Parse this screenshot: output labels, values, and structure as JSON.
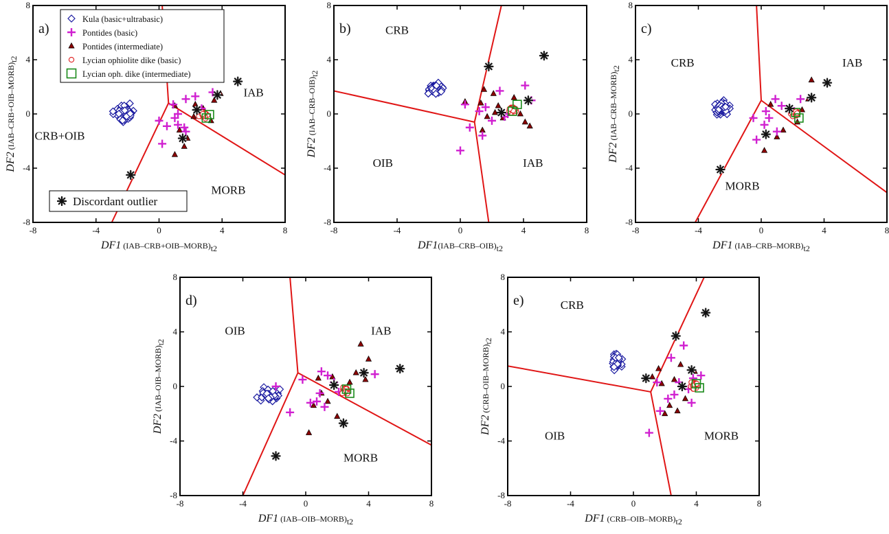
{
  "colors": {
    "kula": "#1a1aa0",
    "pontides_basic": "#d020d0",
    "pontides_intermediate": "#8b0000",
    "lycian_basic": "#e02020",
    "lycian_intermediate": "#1a8a1a",
    "boundary": "#e01515",
    "outlier": "#111111"
  },
  "legend": {
    "entries": [
      {
        "marker": "diamond",
        "label": "Kula (basic+ultrabasic)"
      },
      {
        "marker": "plus",
        "label": "Pontides (basic)"
      },
      {
        "marker": "triangle",
        "label": "Pontides (intermediate)"
      },
      {
        "marker": "circle",
        "label": "Lycian ophiolite dike (basic)"
      },
      {
        "marker": "square",
        "label": "Lycian oph. dike (intermediate)"
      }
    ],
    "outlier_label": "Discordant outlier"
  },
  "chart_data": [
    {
      "id": "a",
      "type": "scatter",
      "panel_label": "a)",
      "xlabel": {
        "main": "DF1",
        "sub": " (IAB–CRB+OIB–MORB)",
        "subscript": "t2"
      },
      "ylabel": {
        "main": "DF2",
        "sub": " (IAB–CRB+OIB–MORB)",
        "subscript": "t2"
      },
      "xlim": [
        -8,
        8
      ],
      "ylim": [
        -8,
        8
      ],
      "xticks": [
        "-8",
        "-4",
        "0",
        "4",
        "8"
      ],
      "yticks": [
        "-8",
        "-4",
        "0",
        "4",
        "8"
      ],
      "regions": [
        {
          "label": "CRB+OIB",
          "x": -6.3,
          "y": -1.6
        },
        {
          "label": "IAB",
          "x": 6.0,
          "y": 1.6
        },
        {
          "label": "MORB",
          "x": 4.4,
          "y": -5.6
        }
      ],
      "boundaries": [
        [
          [
            0.6,
            0.8
          ],
          [
            0.2,
            8
          ]
        ],
        [
          [
            0.6,
            0.8
          ],
          [
            8,
            -4.5
          ]
        ],
        [
          [
            0.6,
            0.8
          ],
          [
            -3.0,
            -8
          ]
        ]
      ],
      "kula_center": [
        -2.2,
        0.1
      ],
      "kula_spread": [
        0.8,
        0.9
      ],
      "basic": [
        [
          1.7,
          1.1
        ],
        [
          0.9,
          0.7
        ],
        [
          1.2,
          -0.8
        ],
        [
          1.6,
          -1.0
        ],
        [
          0.5,
          -0.9
        ],
        [
          0.2,
          -2.2
        ],
        [
          1.2,
          0.0
        ],
        [
          2.3,
          1.3
        ],
        [
          3.4,
          1.6
        ],
        [
          3.3,
          3.0
        ],
        [
          1.7,
          -1.3
        ],
        [
          0.0,
          -0.5
        ],
        [
          2.7,
          0.4
        ],
        [
          1.0,
          -0.3
        ]
      ],
      "intermediate": [
        [
          1.0,
          0.6
        ],
        [
          1.3,
          -1.2
        ],
        [
          1.8,
          -1.8
        ],
        [
          1.0,
          -3.0
        ],
        [
          2.2,
          -0.2
        ],
        [
          2.8,
          0.4
        ],
        [
          3.5,
          1.0
        ],
        [
          3.9,
          1.5
        ],
        [
          3.7,
          2.6
        ],
        [
          3.3,
          -0.5
        ],
        [
          1.6,
          -2.4
        ],
        [
          2.3,
          0.7
        ]
      ],
      "lycian_center": [
        2.8,
        -0.1
      ],
      "lycian_spread": [
        0.35,
        0.35
      ],
      "lycian_int": [
        [
          3.0,
          -0.3
        ],
        [
          3.2,
          -0.05
        ]
      ],
      "outliers": [
        [
          -1.8,
          -4.5
        ],
        [
          2.4,
          0.3
        ],
        [
          1.5,
          -1.8
        ],
        [
          3.7,
          1.4
        ],
        [
          5.0,
          2.4
        ]
      ]
    },
    {
      "id": "b",
      "type": "scatter",
      "panel_label": "b)",
      "xlabel": {
        "main": "DF1",
        "sub": "(IAB–CRB–OIB)",
        "subscript": "t2"
      },
      "ylabel": {
        "main": "DF2",
        "sub": " (IAB–CRB–OIB)",
        "subscript": "t2"
      },
      "xlim": [
        -8,
        8
      ],
      "ylim": [
        -8,
        8
      ],
      "xticks": [
        "-8",
        "-4",
        "0",
        "4",
        "8"
      ],
      "yticks": [
        "-8",
        "-4",
        "0",
        "4",
        "8"
      ],
      "regions": [
        {
          "label": "CRB",
          "x": -4.0,
          "y": 6.2
        },
        {
          "label": "OIB",
          "x": -4.9,
          "y": -3.6
        },
        {
          "label": "IAB",
          "x": 4.6,
          "y": -3.6
        }
      ],
      "boundaries": [
        [
          [
            0.9,
            -0.6
          ],
          [
            -8,
            1.7
          ]
        ],
        [
          [
            0.9,
            -0.6
          ],
          [
            2.6,
            8
          ]
        ],
        [
          [
            0.9,
            -0.6
          ],
          [
            1.8,
            -8
          ]
        ]
      ],
      "kula_center": [
        -1.6,
        1.8
      ],
      "kula_spread": [
        0.7,
        0.6
      ],
      "basic": [
        [
          0.0,
          -2.7
        ],
        [
          0.6,
          -1.0
        ],
        [
          1.4,
          -1.6
        ],
        [
          2.5,
          1.7
        ],
        [
          4.1,
          2.1
        ],
        [
          4.5,
          1.0
        ],
        [
          0.3,
          0.7
        ],
        [
          2.0,
          -0.5
        ],
        [
          1.2,
          0.2
        ],
        [
          3.0,
          0.0
        ],
        [
          1.6,
          0.5
        ],
        [
          2.8,
          -0.2
        ]
      ],
      "intermediate": [
        [
          0.3,
          0.9
        ],
        [
          1.3,
          0.8
        ],
        [
          1.5,
          1.8
        ],
        [
          2.1,
          1.5
        ],
        [
          2.4,
          0.6
        ],
        [
          3.8,
          0.0
        ],
        [
          4.1,
          -0.6
        ],
        [
          4.4,
          -0.9
        ],
        [
          1.7,
          -0.2
        ],
        [
          2.7,
          -0.3
        ],
        [
          3.4,
          1.2
        ],
        [
          1.4,
          -1.2
        ],
        [
          2.2,
          0.1
        ]
      ],
      "lycian_center": [
        3.3,
        0.3
      ],
      "lycian_spread": [
        0.4,
        0.35
      ],
      "lycian_int": [
        [
          3.6,
          0.7
        ],
        [
          3.3,
          0.2
        ]
      ],
      "outliers": [
        [
          1.8,
          3.5
        ],
        [
          5.3,
          4.3
        ],
        [
          2.6,
          0.1
        ],
        [
          4.3,
          1.0
        ]
      ]
    },
    {
      "id": "c",
      "type": "scatter",
      "panel_label": "c)",
      "xlabel": {
        "main": "DF1",
        "sub": " (IAB–CRB–MORB)",
        "subscript": "t2"
      },
      "ylabel": {
        "main": "DF2",
        "sub": " (IAB–CRB–MORB)",
        "subscript": "t2"
      },
      "xlim": [
        -8,
        8
      ],
      "ylim": [
        -8,
        8
      ],
      "xticks": [
        "-8",
        "-4",
        "0",
        "4",
        "8"
      ],
      "yticks": [
        "-8",
        "-4",
        "0",
        "4",
        "8"
      ],
      "regions": [
        {
          "label": "CRB",
          "x": -5.0,
          "y": 3.8
        },
        {
          "label": "IAB",
          "x": 5.8,
          "y": 3.8
        },
        {
          "label": "MORB",
          "x": -1.2,
          "y": -5.3
        }
      ],
      "boundaries": [
        [
          [
            0.0,
            1.0
          ],
          [
            -0.3,
            8
          ]
        ],
        [
          [
            0.0,
            1.0
          ],
          [
            8,
            -5.8
          ]
        ],
        [
          [
            0.0,
            1.0
          ],
          [
            -4.2,
            -8
          ]
        ]
      ],
      "kula_center": [
        -2.5,
        0.4
      ],
      "kula_spread": [
        0.6,
        0.7
      ],
      "basic": [
        [
          -0.5,
          -0.3
        ],
        [
          -0.3,
          -1.9
        ],
        [
          0.2,
          -0.8
        ],
        [
          0.9,
          1.1
        ],
        [
          1.3,
          0.6
        ],
        [
          2.5,
          1.1
        ],
        [
          0.5,
          -0.3
        ],
        [
          1.0,
          -1.3
        ],
        [
          2.1,
          0.2
        ],
        [
          0.3,
          0.2
        ]
      ],
      "intermediate": [
        [
          0.6,
          0.7
        ],
        [
          0.2,
          -2.7
        ],
        [
          1.0,
          -1.7
        ],
        [
          1.7,
          0.3
        ],
        [
          2.3,
          -0.6
        ],
        [
          3.0,
          1.1
        ],
        [
          3.2,
          2.5
        ],
        [
          1.4,
          -1.2
        ],
        [
          2.6,
          0.3
        ]
      ],
      "lycian_center": [
        2.1,
        0.0
      ],
      "lycian_spread": [
        0.35,
        0.35
      ],
      "lycian_int": [
        [
          2.4,
          -0.3
        ],
        [
          2.2,
          0.1
        ]
      ],
      "outliers": [
        [
          -2.6,
          -4.1
        ],
        [
          0.3,
          -1.5
        ],
        [
          1.8,
          0.4
        ],
        [
          3.2,
          1.2
        ],
        [
          4.2,
          2.3
        ]
      ]
    },
    {
      "id": "d",
      "type": "scatter",
      "panel_label": "d)",
      "xlabel": {
        "main": "DF1",
        "sub": " (IAB–OIB–MORB)",
        "subscript": "t2"
      },
      "ylabel": {
        "main": "DF2",
        "sub": " (IAB–OIB–MORB)",
        "subscript": "t2"
      },
      "xlim": [
        -8,
        8
      ],
      "ylim": [
        -8,
        8
      ],
      "xticks": [
        "-8",
        "-4",
        "0",
        "4",
        "8"
      ],
      "yticks": [
        "-8",
        "-4",
        "0",
        "4",
        "8"
      ],
      "regions": [
        {
          "label": "OIB",
          "x": -4.5,
          "y": 4.1
        },
        {
          "label": "IAB",
          "x": 4.8,
          "y": 4.1
        },
        {
          "label": "MORB",
          "x": 3.5,
          "y": -5.2
        }
      ],
      "boundaries": [
        [
          [
            -0.5,
            1.0
          ],
          [
            -1.0,
            8
          ]
        ],
        [
          [
            -0.5,
            1.0
          ],
          [
            8,
            -4.3
          ]
        ],
        [
          [
            -0.5,
            1.0
          ],
          [
            -4.0,
            -8
          ]
        ]
      ],
      "kula_center": [
        -2.4,
        -0.6
      ],
      "kula_spread": [
        1.0,
        0.6
      ],
      "basic": [
        [
          -1.9,
          0.0
        ],
        [
          -0.2,
          0.5
        ],
        [
          0.3,
          -1.2
        ],
        [
          0.7,
          -1.1
        ],
        [
          1.0,
          1.1
        ],
        [
          1.4,
          0.8
        ],
        [
          1.2,
          -1.5
        ],
        [
          -1.0,
          -1.9
        ],
        [
          2.1,
          -0.4
        ],
        [
          4.4,
          0.9
        ],
        [
          0.9,
          -0.5
        ],
        [
          1.8,
          0.3
        ]
      ],
      "intermediate": [
        [
          0.5,
          -1.4
        ],
        [
          0.8,
          0.6
        ],
        [
          1.0,
          -0.5
        ],
        [
          1.4,
          -1.1
        ],
        [
          2.0,
          -2.2
        ],
        [
          0.2,
          -3.4
        ],
        [
          3.5,
          3.1
        ],
        [
          4.0,
          2.0
        ],
        [
          3.2,
          1.0
        ],
        [
          2.8,
          0.3
        ],
        [
          1.7,
          0.7
        ],
        [
          3.8,
          0.5
        ]
      ],
      "lycian_center": [
        2.5,
        -0.3
      ],
      "lycian_spread": [
        0.35,
        0.35
      ],
      "lycian_int": [
        [
          2.8,
          -0.5
        ],
        [
          2.6,
          -0.2
        ]
      ],
      "outliers": [
        [
          -1.9,
          -5.1
        ],
        [
          1.8,
          0.1
        ],
        [
          2.4,
          -2.7
        ],
        [
          3.7,
          1.0
        ],
        [
          6.0,
          1.3
        ]
      ]
    },
    {
      "id": "e",
      "type": "scatter",
      "panel_label": "e)",
      "xlabel": {
        "main": "DF1",
        "sub": " (CRB–OIB–MORB)",
        "subscript": "t2"
      },
      "ylabel": {
        "main": "DF2",
        "sub": " (CRB–OIB–MORB)",
        "subscript": "t2"
      },
      "xlim": [
        -8,
        8
      ],
      "ylim": [
        -8,
        8
      ],
      "xticks": [
        "-8",
        "-4",
        "0",
        "4",
        "8"
      ],
      "yticks": [
        "-8",
        "-4",
        "0",
        "4",
        "8"
      ],
      "regions": [
        {
          "label": "CRB",
          "x": -3.9,
          "y": 6.0
        },
        {
          "label": "OIB",
          "x": -5.0,
          "y": -3.6
        },
        {
          "label": "MORB",
          "x": 5.6,
          "y": -3.6
        }
      ],
      "boundaries": [
        [
          [
            1.1,
            -0.4
          ],
          [
            -8,
            1.5
          ]
        ],
        [
          [
            1.1,
            -0.4
          ],
          [
            4.5,
            8
          ]
        ],
        [
          [
            1.1,
            -0.4
          ],
          [
            2.4,
            -8
          ]
        ]
      ],
      "kula_center": [
        -1.1,
        1.9
      ],
      "kula_spread": [
        0.5,
        0.8
      ],
      "basic": [
        [
          1.0,
          -3.4
        ],
        [
          1.7,
          -1.8
        ],
        [
          2.4,
          2.1
        ],
        [
          3.2,
          3.0
        ],
        [
          2.6,
          -0.6
        ],
        [
          3.5,
          -0.2
        ],
        [
          3.7,
          -1.2
        ],
        [
          1.5,
          0.3
        ],
        [
          2.9,
          0.3
        ],
        [
          4.3,
          0.8
        ],
        [
          2.2,
          -0.9
        ],
        [
          3.8,
          0.6
        ]
      ],
      "intermediate": [
        [
          1.2,
          0.7
        ],
        [
          1.6,
          1.3
        ],
        [
          2.0,
          -2.0
        ],
        [
          1.8,
          0.2
        ],
        [
          2.6,
          0.5
        ],
        [
          3.3,
          -0.9
        ],
        [
          3.0,
          1.6
        ],
        [
          2.3,
          -1.4
        ],
        [
          3.9,
          1.1
        ],
        [
          2.8,
          -1.8
        ]
      ],
      "lycian_center": [
        3.9,
        0.1
      ],
      "lycian_spread": [
        0.35,
        0.45
      ],
      "lycian_int": [
        [
          4.0,
          0.2
        ],
        [
          4.2,
          -0.1
        ]
      ],
      "outliers": [
        [
          0.8,
          0.6
        ],
        [
          2.7,
          3.7
        ],
        [
          4.6,
          5.4
        ],
        [
          3.7,
          1.2
        ],
        [
          3.1,
          0.0
        ]
      ]
    }
  ]
}
